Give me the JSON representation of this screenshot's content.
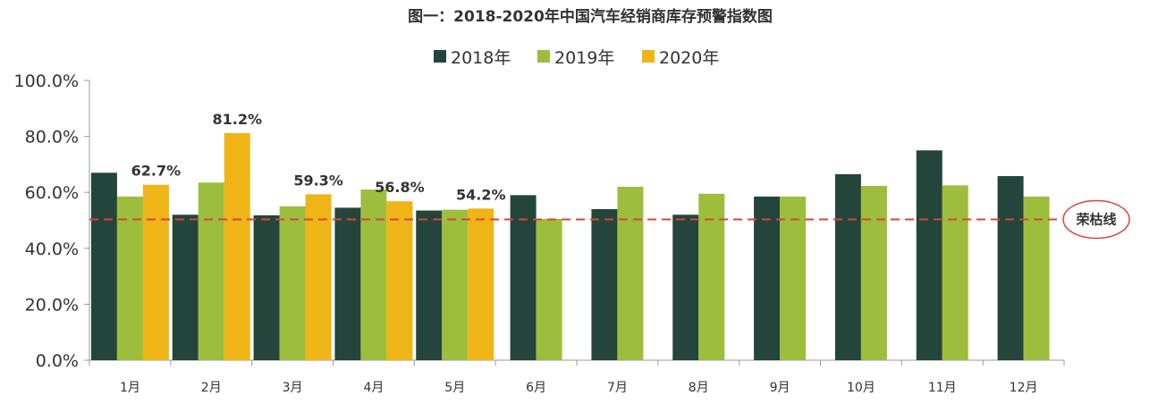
{
  "chart_data": {
    "type": "bar",
    "title": "图一：2018-2020年中国汽车经销商库存预警指数图",
    "categories": [
      "1月",
      "2月",
      "3月",
      "4月",
      "5月",
      "6月",
      "7月",
      "8月",
      "9月",
      "10月",
      "11月",
      "12月"
    ],
    "series": [
      {
        "name": "2018年",
        "color": "#24453b",
        "values": [
          67.0,
          52.0,
          51.8,
          54.5,
          53.5,
          59.0,
          54.0,
          52.0,
          58.5,
          66.5,
          75.0,
          65.8
        ]
      },
      {
        "name": "2019年",
        "color": "#9cbe3c",
        "values": [
          58.5,
          63.5,
          55.0,
          61.0,
          53.8,
          50.5,
          62.0,
          59.5,
          58.5,
          62.3,
          62.5,
          58.5
        ]
      },
      {
        "name": "2020年",
        "color": "#efb416",
        "values": [
          62.7,
          81.2,
          59.3,
          56.8,
          54.2,
          null,
          null,
          null,
          null,
          null,
          null,
          null
        ],
        "data_labels": [
          "62.7%",
          "81.2%",
          "59.3%",
          "56.8%",
          "54.2%"
        ]
      }
    ],
    "ylim": [
      0,
      100
    ],
    "yticks": [
      0,
      20,
      40,
      60,
      80,
      100
    ],
    "ytick_labels": [
      "0.0%",
      "20.0%",
      "40.0%",
      "60.0%",
      "80.0%",
      "100.0%"
    ],
    "reference_line": {
      "value": 50,
      "label": "荣枯线",
      "color": "#d9453a",
      "style": "dashed"
    },
    "legend_position": "top-center",
    "grid": false
  }
}
